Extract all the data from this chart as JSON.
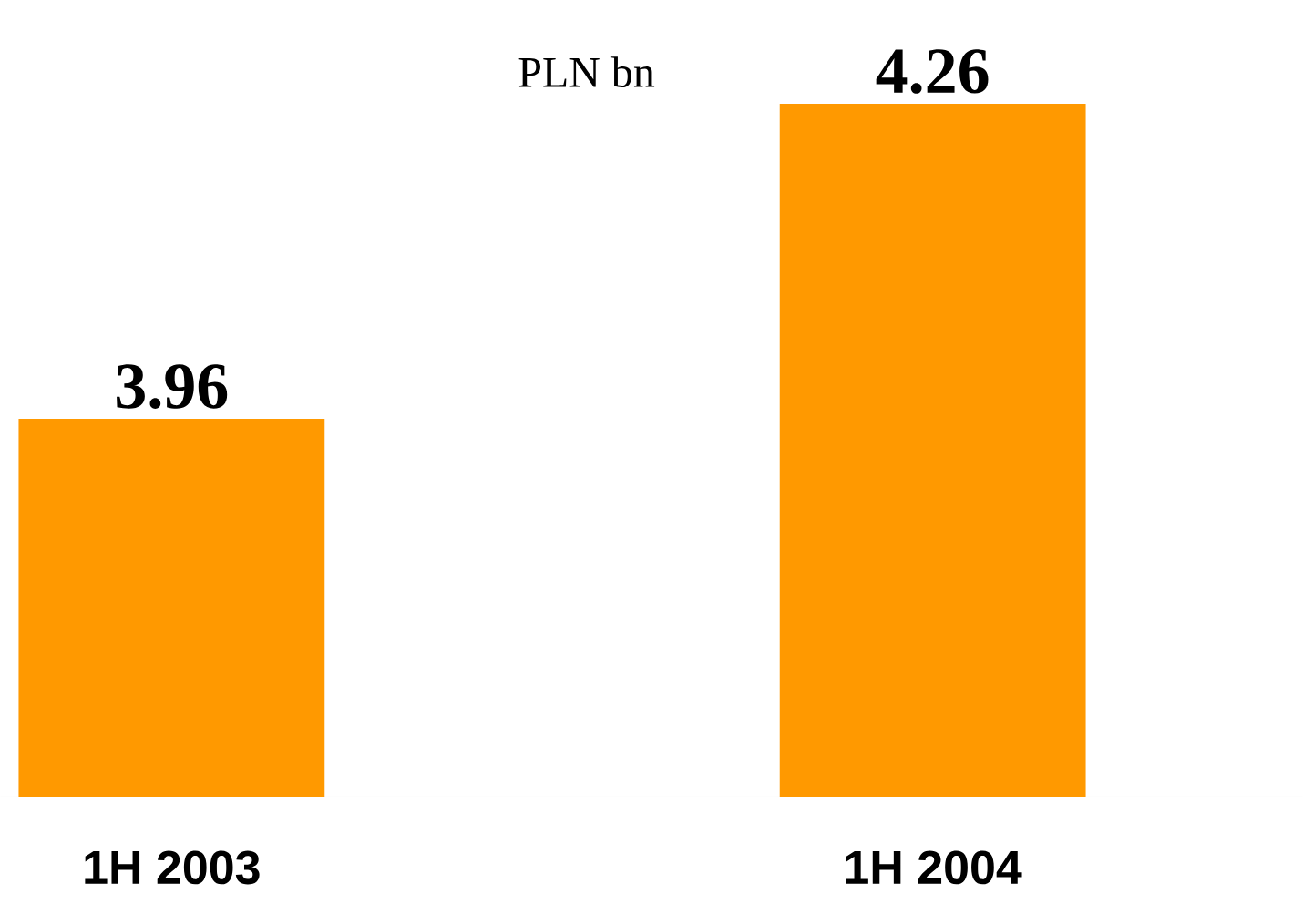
{
  "chart_data": {
    "type": "bar",
    "title": "PLN bn",
    "categories": [
      "1H 2003",
      "1H 2004"
    ],
    "values": [
      3.96,
      4.26
    ],
    "color": "#ff9900",
    "data_labels": true,
    "ylim": [
      3.6,
      4.26
    ],
    "tick_labels": "x"
  }
}
